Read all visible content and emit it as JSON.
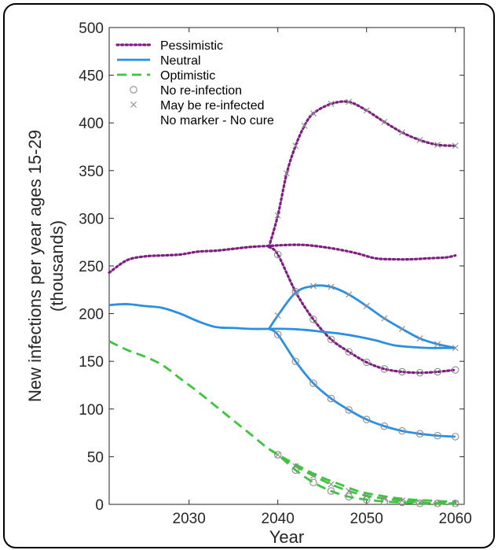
{
  "chart_data": {
    "type": "line",
    "xlabel": "Year",
    "ylabel_line1": "New infections per year ages 15-29",
    "ylabel_line2": "(thousands)",
    "xlim": [
      2021,
      2061
    ],
    "ylim": [
      0,
      500
    ],
    "xticks": [
      2030,
      2040,
      2050,
      2060
    ],
    "yticks": [
      0,
      50,
      100,
      150,
      200,
      250,
      300,
      350,
      400,
      450,
      500
    ],
    "grid": false,
    "legend_position": "top-left",
    "legend": [
      {
        "label": "Pessimistic",
        "style": "dotted",
        "color": "#7e1e80"
      },
      {
        "label": "Neutral",
        "style": "solid",
        "color": "#2b8fe2"
      },
      {
        "label": "Optimistic",
        "style": "dashed",
        "color": "#3fc43f"
      },
      {
        "label": "No re-infection",
        "marker": "circle",
        "color": "#808080"
      },
      {
        "label": "May be re-infected",
        "marker": "x",
        "color": "#808080"
      },
      {
        "label": "No marker - No cure",
        "marker": "none",
        "color": "#808080"
      }
    ],
    "series": [
      {
        "scenario": "Pessimistic",
        "variant": "no cure",
        "style": "dotted",
        "color": "#7e1e80",
        "marker": "none",
        "x": [
          2021,
          2023,
          2025,
          2027,
          2029,
          2031,
          2033,
          2035,
          2037,
          2039,
          2041,
          2043,
          2045,
          2047,
          2049,
          2051,
          2053,
          2055,
          2057,
          2059,
          2060
        ],
        "y": [
          243,
          256,
          260,
          261,
          262,
          265,
          266,
          268,
          270,
          271,
          272,
          272,
          270,
          267,
          263,
          258,
          257,
          257,
          258,
          259,
          261
        ]
      },
      {
        "scenario": "Pessimistic",
        "variant": "may be re-infected",
        "style": "dotted",
        "color": "#7e1e80",
        "marker": "x",
        "x": [
          2039,
          2040,
          2041,
          2042,
          2043,
          2044,
          2046,
          2048,
          2050,
          2052,
          2054,
          2056,
          2058,
          2060
        ],
        "y": [
          270,
          303,
          347,
          376,
          397,
          410,
          420,
          422,
          413,
          401,
          390,
          382,
          377,
          376
        ]
      },
      {
        "scenario": "Pessimistic",
        "variant": "no re-infection",
        "style": "dotted",
        "color": "#7e1e80",
        "marker": "circle",
        "x": [
          2039,
          2040,
          2042,
          2044,
          2046,
          2048,
          2050,
          2052,
          2054,
          2056,
          2058,
          2060
        ],
        "y": [
          270,
          262,
          223,
          194,
          173,
          160,
          149,
          142,
          139,
          138,
          139,
          141
        ]
      },
      {
        "scenario": "Neutral",
        "variant": "no cure",
        "style": "solid",
        "color": "#2b8fe2",
        "marker": "none",
        "x": [
          2021,
          2023,
          2025,
          2027,
          2029,
          2031,
          2033,
          2035,
          2037,
          2039,
          2041,
          2043,
          2045,
          2047,
          2049,
          2051,
          2053,
          2055,
          2057,
          2059,
          2060
        ],
        "y": [
          209,
          210,
          208,
          206,
          200,
          192,
          186,
          185,
          184,
          184,
          184,
          183,
          181,
          179,
          176,
          172,
          167,
          165,
          164,
          164,
          164
        ]
      },
      {
        "scenario": "Neutral",
        "variant": "may be re-infected",
        "style": "solid",
        "color": "#2b8fe2",
        "marker": "x",
        "x": [
          2039,
          2040,
          2042,
          2044,
          2046,
          2048,
          2050,
          2052,
          2054,
          2056,
          2058,
          2060
        ],
        "y": [
          184,
          198,
          222,
          229,
          228,
          220,
          208,
          195,
          184,
          174,
          168,
          164
        ]
      },
      {
        "scenario": "Neutral",
        "variant": "no re-infection",
        "style": "solid",
        "color": "#2b8fe2",
        "marker": "circle",
        "x": [
          2039,
          2040,
          2042,
          2044,
          2046,
          2048,
          2050,
          2052,
          2054,
          2056,
          2058,
          2060
        ],
        "y": [
          184,
          178,
          150,
          127,
          111,
          99,
          89,
          82,
          77,
          74,
          72,
          71
        ]
      },
      {
        "scenario": "Optimistic",
        "variant": "no cure",
        "style": "dashed",
        "color": "#3fc43f",
        "marker": "none",
        "x": [
          2021,
          2023,
          2025,
          2027,
          2029,
          2031,
          2033,
          2035,
          2037,
          2039,
          2041,
          2043,
          2045,
          2047,
          2049,
          2051,
          2053,
          2055,
          2057,
          2059,
          2060
        ],
        "y": [
          171,
          162,
          155,
          146,
          132,
          118,
          103,
          88,
          73,
          58,
          47,
          37,
          28,
          21,
          14,
          10,
          7,
          5,
          4,
          3,
          3
        ]
      },
      {
        "scenario": "Optimistic",
        "variant": "may be re-infected",
        "style": "dashed",
        "color": "#3fc43f",
        "marker": "x",
        "x": [
          2039,
          2040,
          2042,
          2044,
          2046,
          2048,
          2050,
          2052,
          2054,
          2056,
          2058,
          2060
        ],
        "y": [
          58,
          52,
          40,
          30,
          21,
          14,
          9,
          6,
          4,
          2,
          1,
          1
        ]
      },
      {
        "scenario": "Optimistic",
        "variant": "no re-infection",
        "style": "dashed",
        "color": "#3fc43f",
        "marker": "circle",
        "x": [
          2039,
          2040,
          2042,
          2044,
          2046,
          2048,
          2050,
          2052,
          2054,
          2056,
          2058,
          2060
        ],
        "y": [
          58,
          52,
          36,
          23,
          14,
          8,
          5,
          3,
          2,
          1,
          1,
          1
        ]
      }
    ]
  }
}
